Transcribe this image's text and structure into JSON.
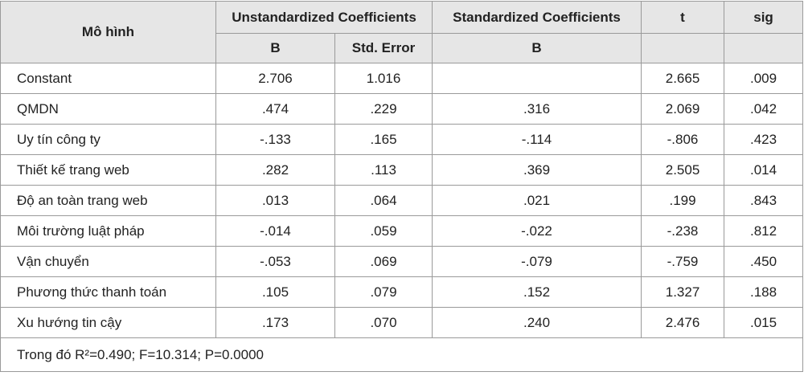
{
  "header": {
    "model": "Mô hình",
    "unstandardized": "Unstandardized Coefficients",
    "standardized": "Standardized Coefficients",
    "t": "t",
    "sig": "sig",
    "b_unstd": "B",
    "std_error": "Std. Error",
    "b_std": "B"
  },
  "table": {
    "rows": [
      [
        "Constant",
        "2.706",
        "1.016",
        null,
        "2.665",
        ".009"
      ],
      [
        "QMDN",
        ".474",
        ".229",
        ".316",
        "2.069",
        ".042"
      ],
      [
        "Uy tín công ty",
        "-.133",
        ".165",
        "-.114",
        "-.806",
        ".423"
      ],
      [
        "Thiết kế trang web",
        ".282",
        ".113",
        ".369",
        "2.505",
        ".014"
      ],
      [
        "Độ an toàn trang web",
        ".013",
        ".064",
        ".021",
        ".199",
        ".843"
      ],
      [
        "Môi trường luật pháp",
        "-.014",
        ".059",
        "-.022",
        "-.238",
        ".812"
      ],
      [
        "Vận chuyển",
        "-.053",
        ".069",
        "-.079",
        "-.759",
        ".450"
      ],
      [
        "Phương thức thanh toán",
        ".105",
        ".079",
        ".152",
        "1.327",
        ".188"
      ],
      [
        "Xu hướng tin cậy",
        ".173",
        ".070",
        ".240",
        "2.476",
        ".015"
      ]
    ]
  },
  "footer": "Trong đó R²=0.490; F=10.314; P=0.0000"
}
